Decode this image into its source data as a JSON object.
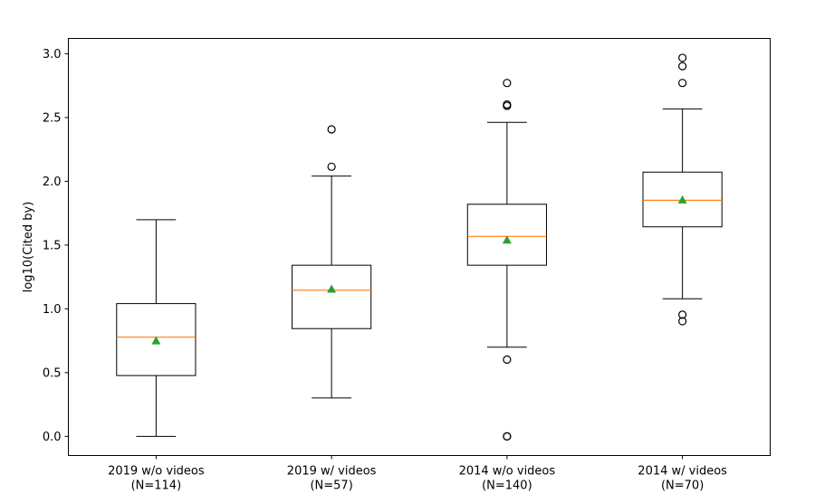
{
  "chart_data": {
    "type": "box",
    "title": "",
    "xlabel": "",
    "ylabel": "log10(Cited by)",
    "ylim": [
      -0.15,
      3.12
    ],
    "yticks": [
      "0.0",
      "0.5",
      "1.0",
      "1.5",
      "2.0",
      "2.5",
      "3.0"
    ],
    "ytick_values": [
      0.0,
      0.5,
      1.0,
      1.5,
      2.0,
      2.5,
      3.0
    ],
    "grid": false,
    "categories": [
      {
        "line1": "2019 w/o videos",
        "line2": "(N=114)"
      },
      {
        "line1": "2019 w/ videos",
        "line2": "(N=57)"
      },
      {
        "line1": "2014 w/o videos",
        "line2": "(N=140)"
      },
      {
        "line1": "2014 w/ videos",
        "line2": "(N=70)"
      }
    ],
    "boxes": [
      {
        "whisker_low": 0.0,
        "q1": 0.477,
        "median": 0.778,
        "q3": 1.041,
        "whisker_high": 1.699,
        "mean": 0.75,
        "outliers": []
      },
      {
        "whisker_low": 0.301,
        "q1": 0.845,
        "median": 1.146,
        "q3": 1.342,
        "whisker_high": 2.041,
        "mean": 1.155,
        "outliers": [
          2.114,
          2.407
        ]
      },
      {
        "whisker_low": 0.699,
        "q1": 1.342,
        "median": 1.568,
        "q3": 1.82,
        "whisker_high": 2.462,
        "mean": 1.54,
        "outliers": [
          0.602,
          0.0,
          0.0,
          2.591,
          2.602,
          2.771
        ]
      },
      {
        "whisker_low": 1.079,
        "q1": 1.643,
        "median": 1.851,
        "q3": 2.072,
        "whisker_high": 2.568,
        "mean": 1.855,
        "outliers": [
          0.903,
          0.954,
          2.771,
          2.903,
          2.968
        ]
      }
    ],
    "colors": {
      "box": "#000000",
      "median": "#ff7f0e",
      "mean": "#2ca02c",
      "outlier": "#000000"
    }
  }
}
